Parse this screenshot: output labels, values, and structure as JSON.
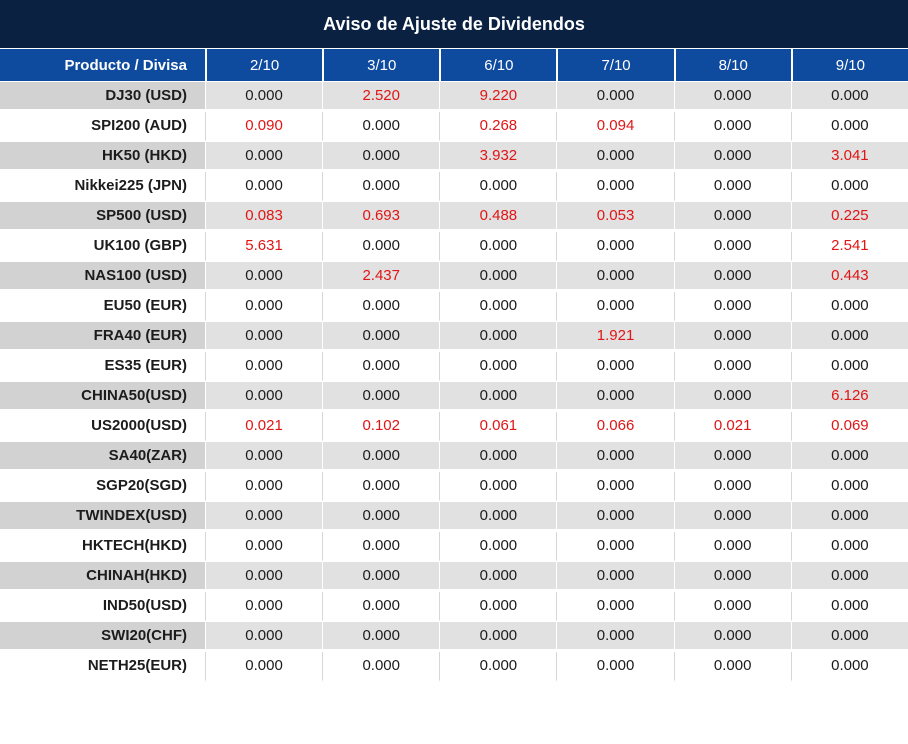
{
  "title": "Aviso de Ajuste de Dividendos",
  "table": {
    "product_header": "Producto / Divisa",
    "date_headers": [
      "2/10",
      "3/10",
      "6/10",
      "7/10",
      "8/10",
      "9/10"
    ],
    "rows": [
      {
        "product": "DJ30 (USD)",
        "values": [
          "0.000",
          "2.520",
          "9.220",
          "0.000",
          "0.000",
          "0.000"
        ]
      },
      {
        "product": "SPI200 (AUD)",
        "values": [
          "0.090",
          "0.000",
          "0.268",
          "0.094",
          "0.000",
          "0.000"
        ]
      },
      {
        "product": "HK50 (HKD)",
        "values": [
          "0.000",
          "0.000",
          "3.932",
          "0.000",
          "0.000",
          "3.041"
        ]
      },
      {
        "product": "Nikkei225 (JPN)",
        "values": [
          "0.000",
          "0.000",
          "0.000",
          "0.000",
          "0.000",
          "0.000"
        ]
      },
      {
        "product": "SP500 (USD)",
        "values": [
          "0.083",
          "0.693",
          "0.488",
          "0.053",
          "0.000",
          "0.225"
        ]
      },
      {
        "product": "UK100 (GBP)",
        "values": [
          "5.631",
          "0.000",
          "0.000",
          "0.000",
          "0.000",
          "2.541"
        ]
      },
      {
        "product": "NAS100 (USD)",
        "values": [
          "0.000",
          "2.437",
          "0.000",
          "0.000",
          "0.000",
          "0.443"
        ]
      },
      {
        "product": "EU50 (EUR)",
        "values": [
          "0.000",
          "0.000",
          "0.000",
          "0.000",
          "0.000",
          "0.000"
        ]
      },
      {
        "product": "FRA40 (EUR)",
        "values": [
          "0.000",
          "0.000",
          "0.000",
          "1.921",
          "0.000",
          "0.000"
        ]
      },
      {
        "product": "ES35 (EUR)",
        "values": [
          "0.000",
          "0.000",
          "0.000",
          "0.000",
          "0.000",
          "0.000"
        ]
      },
      {
        "product": "CHINA50(USD)",
        "values": [
          "0.000",
          "0.000",
          "0.000",
          "0.000",
          "0.000",
          "6.126"
        ]
      },
      {
        "product": "US2000(USD)",
        "values": [
          "0.021",
          "0.102",
          "0.061",
          "0.066",
          "0.021",
          "0.069"
        ]
      },
      {
        "product": "SA40(ZAR)",
        "values": [
          "0.000",
          "0.000",
          "0.000",
          "0.000",
          "0.000",
          "0.000"
        ]
      },
      {
        "product": "SGP20(SGD)",
        "values": [
          "0.000",
          "0.000",
          "0.000",
          "0.000",
          "0.000",
          "0.000"
        ]
      },
      {
        "product": "TWINDEX(USD)",
        "values": [
          "0.000",
          "0.000",
          "0.000",
          "0.000",
          "0.000",
          "0.000"
        ]
      },
      {
        "product": "HKTECH(HKD)",
        "values": [
          "0.000",
          "0.000",
          "0.000",
          "0.000",
          "0.000",
          "0.000"
        ]
      },
      {
        "product": "CHINAH(HKD)",
        "values": [
          "0.000",
          "0.000",
          "0.000",
          "0.000",
          "0.000",
          "0.000"
        ]
      },
      {
        "product": "IND50(USD)",
        "values": [
          "0.000",
          "0.000",
          "0.000",
          "0.000",
          "0.000",
          "0.000"
        ]
      },
      {
        "product": "SWI20(CHF)",
        "values": [
          "0.000",
          "0.000",
          "0.000",
          "0.000",
          "0.000",
          "0.000"
        ]
      },
      {
        "product": "NETH25(EUR)",
        "values": [
          "0.000",
          "0.000",
          "0.000",
          "0.000",
          "0.000",
          "0.000"
        ]
      }
    ]
  },
  "colors": {
    "title_bar_bg": "#0a2142",
    "header_row_bg": "#0e4a9e",
    "header_text": "#ffffff",
    "value_text": "#1c1c1c",
    "nonzero_value_text": "#e01515",
    "striped_row_value_bg": "#e1e1e1",
    "striped_row_product_bg": "#d2d2d2"
  },
  "chart_data": {
    "type": "table",
    "title": "Aviso de Ajuste de Dividendos",
    "columns": [
      "Producto / Divisa",
      "2/10",
      "3/10",
      "6/10",
      "7/10",
      "8/10",
      "9/10"
    ],
    "rows": [
      [
        "DJ30 (USD)",
        0.0,
        2.52,
        9.22,
        0.0,
        0.0,
        0.0
      ],
      [
        "SPI200 (AUD)",
        0.09,
        0.0,
        0.268,
        0.094,
        0.0,
        0.0
      ],
      [
        "HK50 (HKD)",
        0.0,
        0.0,
        3.932,
        0.0,
        0.0,
        3.041
      ],
      [
        "Nikkei225 (JPN)",
        0.0,
        0.0,
        0.0,
        0.0,
        0.0,
        0.0
      ],
      [
        "SP500 (USD)",
        0.083,
        0.693,
        0.488,
        0.053,
        0.0,
        0.225
      ],
      [
        "UK100 (GBP)",
        5.631,
        0.0,
        0.0,
        0.0,
        0.0,
        2.541
      ],
      [
        "NAS100 (USD)",
        0.0,
        2.437,
        0.0,
        0.0,
        0.0,
        0.443
      ],
      [
        "EU50 (EUR)",
        0.0,
        0.0,
        0.0,
        0.0,
        0.0,
        0.0
      ],
      [
        "FRA40 (EUR)",
        0.0,
        0.0,
        0.0,
        1.921,
        0.0,
        0.0
      ],
      [
        "ES35 (EUR)",
        0.0,
        0.0,
        0.0,
        0.0,
        0.0,
        0.0
      ],
      [
        "CHINA50(USD)",
        0.0,
        0.0,
        0.0,
        0.0,
        0.0,
        6.126
      ],
      [
        "US2000(USD)",
        0.021,
        0.102,
        0.061,
        0.066,
        0.021,
        0.069
      ],
      [
        "SA40(ZAR)",
        0.0,
        0.0,
        0.0,
        0.0,
        0.0,
        0.0
      ],
      [
        "SGP20(SGD)",
        0.0,
        0.0,
        0.0,
        0.0,
        0.0,
        0.0
      ],
      [
        "TWINDEX(USD)",
        0.0,
        0.0,
        0.0,
        0.0,
        0.0,
        0.0
      ],
      [
        "HKTECH(HKD)",
        0.0,
        0.0,
        0.0,
        0.0,
        0.0,
        0.0
      ],
      [
        "CHINAH(HKD)",
        0.0,
        0.0,
        0.0,
        0.0,
        0.0,
        0.0
      ],
      [
        "IND50(USD)",
        0.0,
        0.0,
        0.0,
        0.0,
        0.0,
        0.0
      ],
      [
        "SWI20(CHF)",
        0.0,
        0.0,
        0.0,
        0.0,
        0.0,
        0.0
      ],
      [
        "NETH25(EUR)",
        0.0,
        0.0,
        0.0,
        0.0,
        0.0,
        0.0
      ]
    ],
    "notes": "Non-zero adjustment values are rendered in red; zero values in black. Rows alternate gray/white striping."
  }
}
